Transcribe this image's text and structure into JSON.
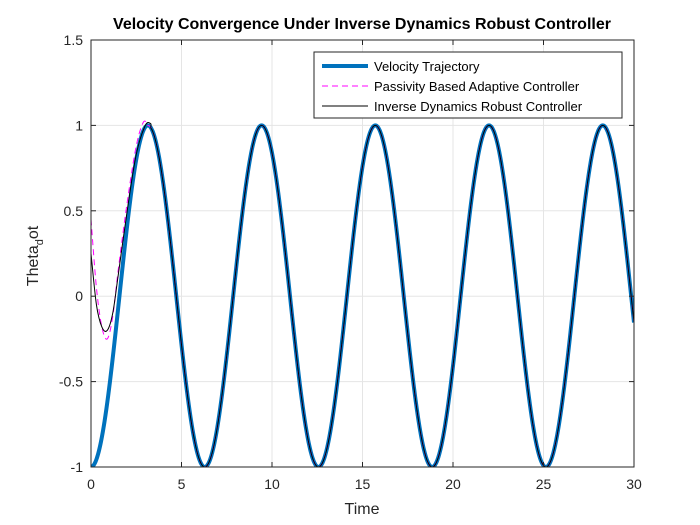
{
  "chart_data": {
    "type": "line",
    "title": "Velocity Convergence Under Inverse Dynamics Robust Controller",
    "xlabel": "Time",
    "ylabel_main": "Theta",
    "ylabel_sub": "d",
    "ylabel_tail": "ot",
    "xlim": [
      0,
      30
    ],
    "ylim": [
      -1,
      1.5
    ],
    "xticks": [
      0,
      5,
      10,
      15,
      20,
      25,
      30
    ],
    "xtick_labels": [
      "0",
      "5",
      "10",
      "15",
      "20",
      "25",
      "30"
    ],
    "yticks": [
      -1,
      -0.5,
      0,
      0.5,
      1,
      1.5
    ],
    "ytick_labels": [
      "-1",
      "-0.5",
      "0",
      "0.5",
      "1",
      "1.5"
    ],
    "grid": true,
    "legend_position": "top-right",
    "series": [
      {
        "name": "Velocity Trajectory",
        "color": "#0072BD",
        "style": "solid-thick",
        "function": "-cos(t)",
        "x": [
          0,
          1,
          2,
          3,
          3.14,
          5,
          6.28,
          8,
          9.42,
          11,
          12.57,
          14,
          15.71,
          17,
          18.85,
          20,
          21.99,
          24,
          25.13,
          27,
          28.27,
          30
        ],
        "y": [
          -1,
          -0.54,
          0.42,
          0.99,
          1,
          -0.28,
          -1,
          0.15,
          1,
          -0.0,
          -1,
          0.14,
          1,
          0.28,
          -1,
          -0.41,
          1,
          -0.42,
          -1,
          0.29,
          1,
          -0.15
        ]
      },
      {
        "name": "Passivity Based Adaptive Controller",
        "color": "#FF00FF",
        "style": "dashed",
        "x": [
          0,
          0.3,
          0.6,
          0.9,
          1.2,
          1.5,
          2.0,
          2.5,
          2.9,
          3.14,
          30
        ],
        "y": [
          0.45,
          0.05,
          -0.18,
          -0.25,
          -0.12,
          0.15,
          0.55,
          0.88,
          1.02,
          1.0,
          -0.15
        ]
      },
      {
        "name": "Inverse Dynamics Robust Controller",
        "color": "#000000",
        "style": "solid-thin",
        "x": [
          0,
          0.3,
          0.6,
          0.9,
          1.2,
          1.5,
          2.0,
          2.5,
          3.0,
          3.3,
          30
        ],
        "y": [
          0.25,
          -0.05,
          -0.18,
          -0.2,
          -0.1,
          0.12,
          0.5,
          0.83,
          1.0,
          1.01,
          -0.15
        ]
      }
    ]
  }
}
